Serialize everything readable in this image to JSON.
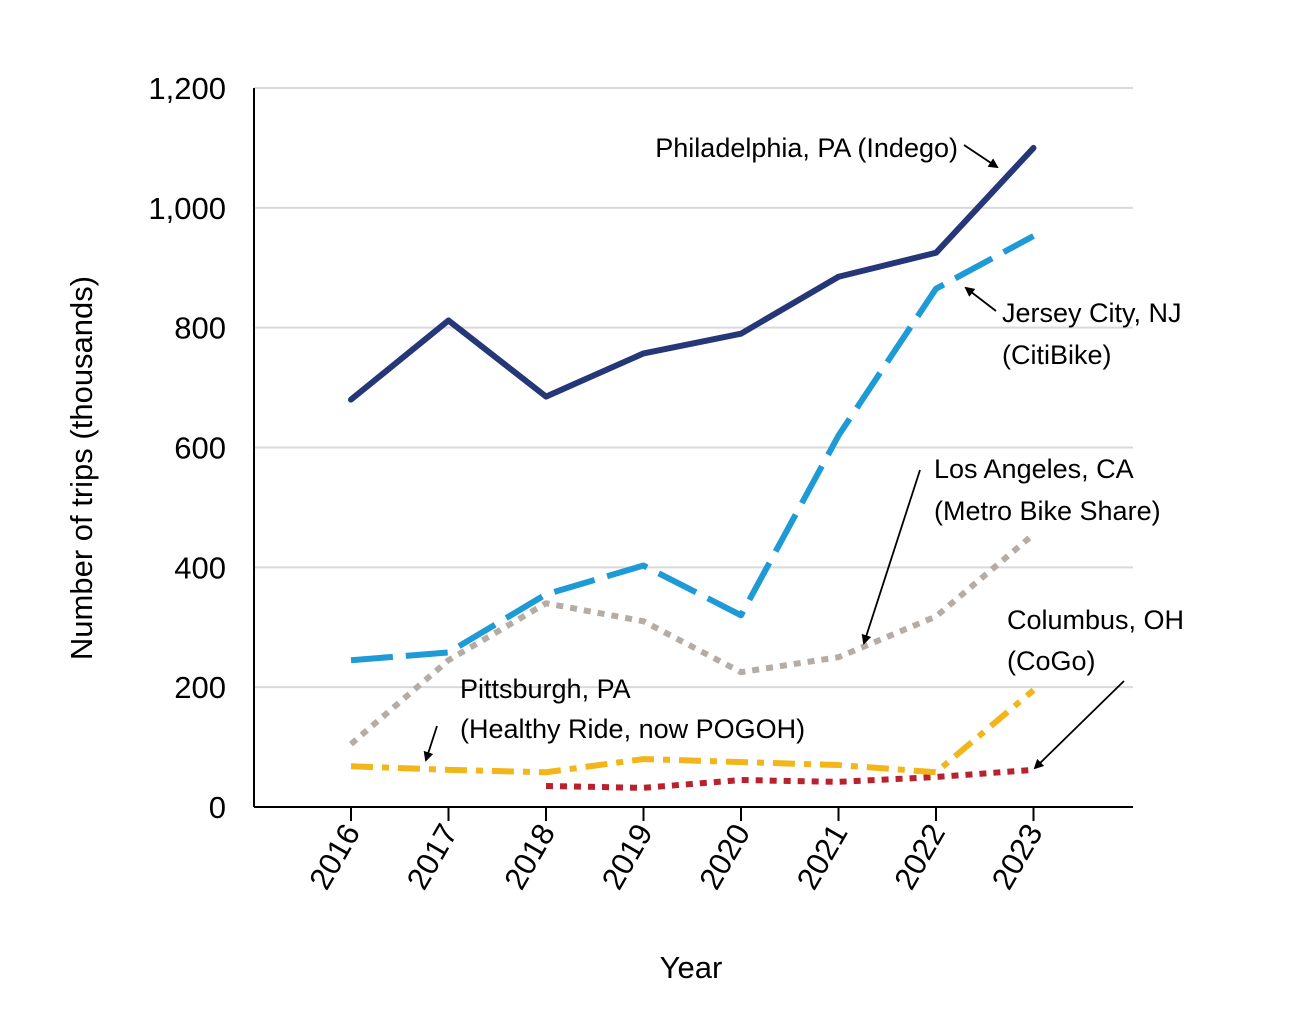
{
  "chart_data": {
    "type": "line",
    "title": "",
    "xlabel": "Year",
    "ylabel": "Number of trips (thousands)",
    "ylim": [
      0,
      1200
    ],
    "yticks": [
      0,
      200,
      400,
      600,
      800,
      1000,
      1200
    ],
    "ytick_labels": [
      "0",
      "200",
      "400",
      "600",
      "800",
      "1,000",
      "1,200"
    ],
    "categories": [
      "2016",
      "2017",
      "2018",
      "2019",
      "2020",
      "2021",
      "2022",
      "2023"
    ],
    "grid": true,
    "series": [
      {
        "name": "Philadelphia, PA (Indego)",
        "color": "#253779",
        "dash": "solid",
        "values": [
          680,
          812,
          685,
          757,
          790,
          885,
          925,
          1100
        ],
        "annotation_lines": [
          "Philadelphia, PA (Indego)"
        ]
      },
      {
        "name": "Jersey City, NJ (CitiBike)",
        "color": "#1e9ad6",
        "dash": "longdash",
        "values": [
          245,
          258,
          355,
          403,
          320,
          620,
          865,
          953
        ],
        "annotation_lines": [
          "Jersey City, NJ",
          "(CitiBike)"
        ]
      },
      {
        "name": "Los Angeles, CA (Metro Bike Share)",
        "color": "#b5aca6",
        "dash": "dotted",
        "values": [
          105,
          245,
          340,
          310,
          225,
          250,
          318,
          455
        ],
        "annotation_lines": [
          "Los Angeles, CA",
          "(Metro Bike Share)"
        ]
      },
      {
        "name": "Pittsburgh, PA (Healthy Ride, now POGOH)",
        "color": "#f2b51a",
        "dash": "dashdot",
        "values": [
          68,
          62,
          58,
          80,
          75,
          70,
          58,
          195
        ],
        "annotation_lines": [
          "Pittsburgh, PA",
          "(Healthy Ride, now POGOH)"
        ]
      },
      {
        "name": "Columbus, OH (CoGo)",
        "color": "#b7222e",
        "dash": "dotted",
        "values": [
          null,
          null,
          35,
          32,
          45,
          42,
          50,
          62
        ],
        "annotation_lines": [
          "Columbus, OH",
          "(CoGo)"
        ]
      }
    ]
  }
}
